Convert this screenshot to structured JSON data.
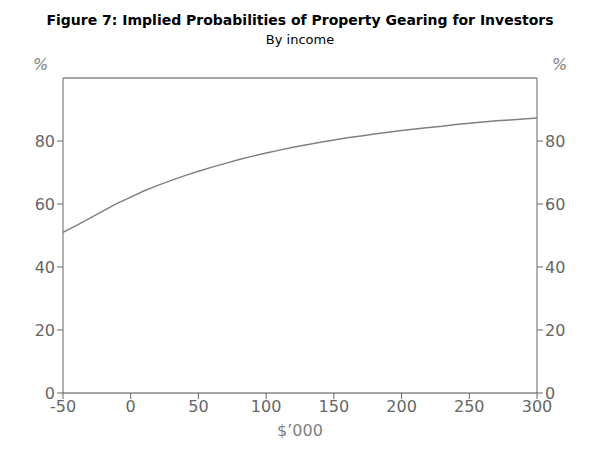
{
  "chart_data": {
    "type": "line",
    "title": "Figure 7: Implied Probabilities of Property Gearing for Investors",
    "subtitle": "By income",
    "xlabel": "$’000",
    "ylabel": "%",
    "y2label": "%",
    "x": [
      -50,
      -40,
      -30,
      -20,
      -10,
      0,
      10,
      20,
      30,
      40,
      50,
      60,
      70,
      80,
      90,
      100,
      110,
      120,
      130,
      140,
      150,
      160,
      170,
      180,
      190,
      200,
      210,
      220,
      230,
      240,
      250,
      260,
      270,
      280,
      290,
      300
    ],
    "values": [
      51.0,
      53.2,
      55.5,
      57.9,
      60.2,
      62.2,
      64.2,
      65.9,
      67.5,
      69.0,
      70.4,
      71.7,
      72.9,
      74.1,
      75.2,
      76.2,
      77.1,
      78.0,
      78.8,
      79.6,
      80.3,
      81.0,
      81.6,
      82.2,
      82.8,
      83.3,
      83.8,
      84.3,
      84.7,
      85.2,
      85.6,
      86.0,
      86.4,
      86.7,
      87.0,
      87.3
    ],
    "color": "#808080",
    "xlim": [
      -50,
      300
    ],
    "xticks": [
      -50,
      0,
      50,
      100,
      150,
      200,
      250,
      300
    ],
    "ylim": [
      0,
      100
    ],
    "yticks": [
      0,
      20,
      40,
      60,
      80
    ],
    "y2lim": [
      0,
      100
    ],
    "y2ticks": [
      0,
      20,
      40,
      60,
      80
    ],
    "grid": "y"
  }
}
